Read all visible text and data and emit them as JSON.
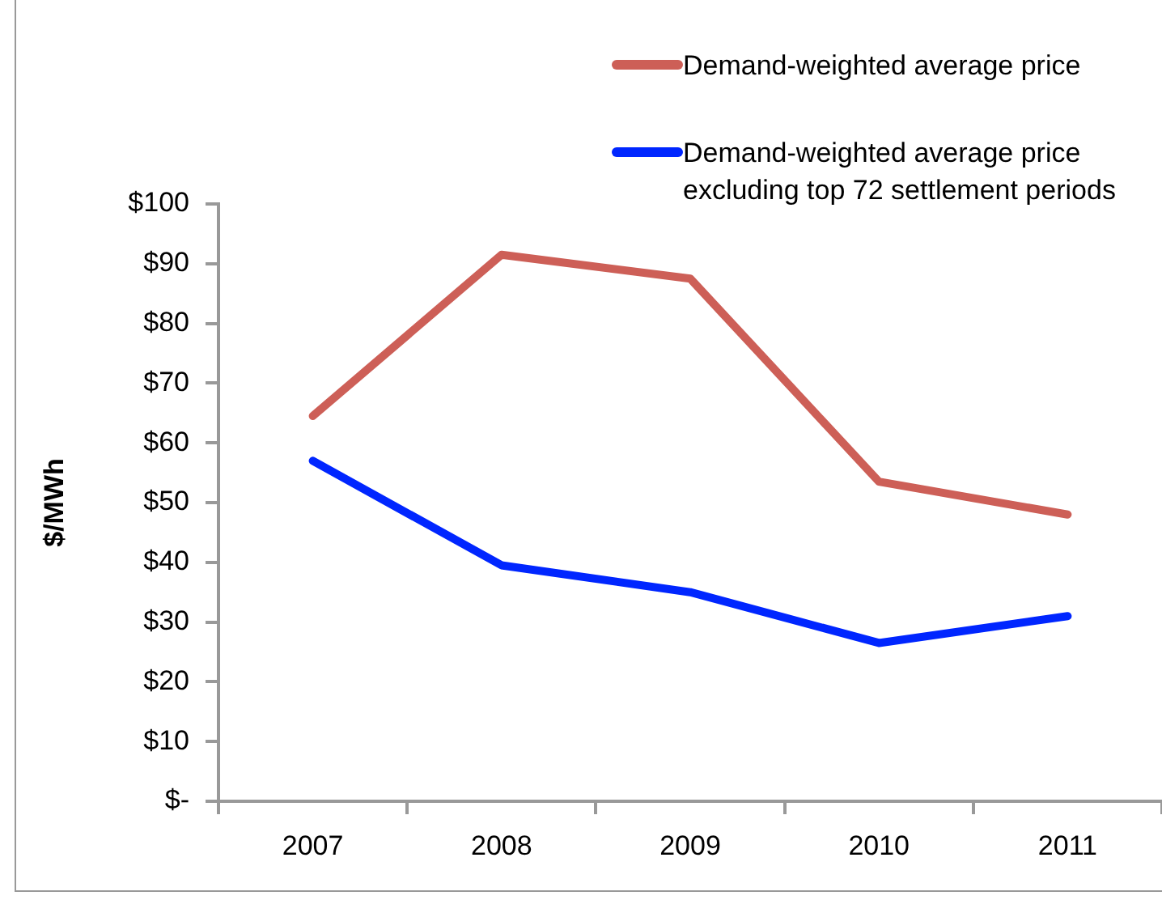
{
  "chart_data": {
    "type": "line",
    "ylabel": "$/MWh",
    "categories": [
      "2007",
      "2008",
      "2009",
      "2010",
      "2011"
    ],
    "series": [
      {
        "name": "Demand-weighted average price",
        "color": "#cd5f57",
        "values": [
          64.5,
          91.5,
          87.5,
          53.5,
          48
        ]
      },
      {
        "name": "Demand-weighted average price excluding top 72 settlement periods",
        "color": "#0026ff",
        "values": [
          57,
          39.5,
          35,
          26.5,
          31
        ]
      }
    ],
    "ylim": [
      0,
      100
    ],
    "yticks": [
      {
        "value": 0,
        "label": "$-"
      },
      {
        "value": 10,
        "label": "$10"
      },
      {
        "value": 20,
        "label": "$20"
      },
      {
        "value": 30,
        "label": "$30"
      },
      {
        "value": 40,
        "label": "$40"
      },
      {
        "value": 50,
        "label": "$50"
      },
      {
        "value": 60,
        "label": "$60"
      },
      {
        "value": 70,
        "label": "$70"
      },
      {
        "value": 80,
        "label": "$80"
      },
      {
        "value": 90,
        "label": "$90"
      },
      {
        "value": 100,
        "label": "$100"
      }
    ],
    "legend": "top right"
  }
}
